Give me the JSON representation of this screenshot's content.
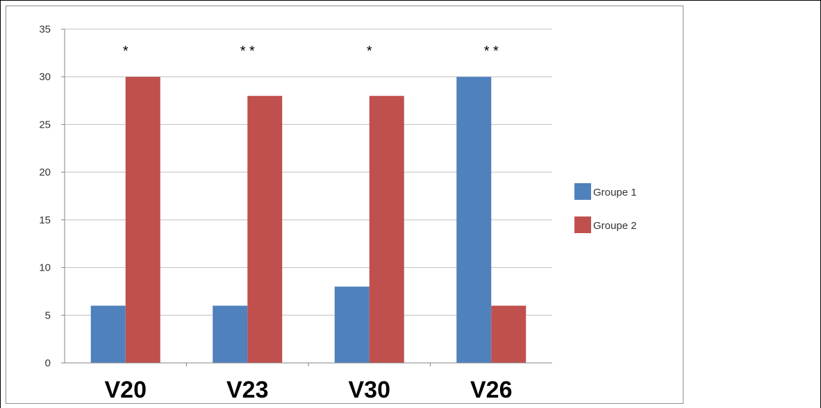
{
  "chart_data": {
    "type": "bar",
    "categories": [
      "V20",
      "V23",
      "V30",
      "V26"
    ],
    "series": [
      {
        "name": "Groupe 1",
        "values": [
          6,
          6,
          8,
          30
        ],
        "color": "#4f81bd"
      },
      {
        "name": "Groupe 2",
        "values": [
          30,
          28,
          28,
          6
        ],
        "color": "#c0504d"
      }
    ],
    "annotations": [
      "*",
      "* *",
      "*",
      "* *"
    ],
    "ylim": [
      0,
      35
    ],
    "yticks": [
      0,
      5,
      10,
      15,
      20,
      25,
      30,
      35
    ],
    "grid": true,
    "legend_position": "right",
    "title": "",
    "xlabel": "",
    "ylabel": ""
  }
}
